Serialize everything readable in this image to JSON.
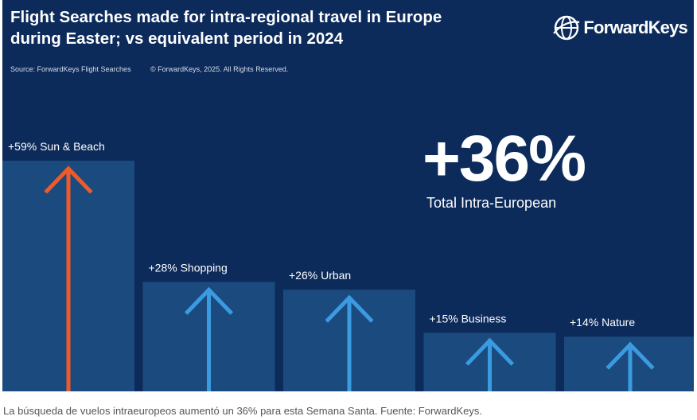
{
  "header": {
    "title": "Flight Searches made for intra-regional travel in Europe during Easter; vs equivalent period in 2024",
    "source": "Source: ForwardKeys Flight Searches",
    "copyright": "© ForwardKeys, 2025. All Rights Reserved."
  },
  "brand": {
    "name": "ForwardKeys",
    "logo_icon": "globe-icon"
  },
  "highlight": {
    "value": "+36%",
    "label": "Total Intra-European"
  },
  "caption": "La búsqueda de vuelos intraeuropeos aumentó un 36% para esta Semana Santa. Fuente: ForwardKeys.",
  "colors": {
    "background": "#0c2a5a",
    "bar": "#1b4a7f",
    "arrow_highlight": "#f05a28",
    "arrow_default": "#3a9be0"
  },
  "chart_data": {
    "type": "bar",
    "categories": [
      "Sun & Beach",
      "Shopping",
      "Urban",
      "Business",
      "Nature"
    ],
    "values": [
      59,
      28,
      26,
      15,
      14
    ],
    "labels": [
      "+59% Sun & Beach",
      "+28% Shopping",
      "+26% Urban",
      "+15% Business",
      "+14% Nature"
    ],
    "unit": "%",
    "highlight_index": 0,
    "marker": "up-arrow"
  }
}
